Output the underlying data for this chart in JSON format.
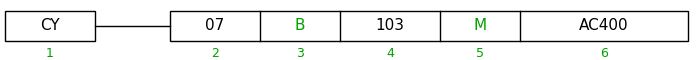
{
  "cy_label": "CY",
  "cy_number": "1",
  "segments": [
    "07",
    "B",
    "103",
    "M",
    "AC400"
  ],
  "numbers": [
    "2",
    "3",
    "4",
    "5",
    "6"
  ],
  "green_segments": [
    1,
    3
  ],
  "text_color_normal": "#000000",
  "text_color_green": "#00a000",
  "number_color": "#00a000",
  "box_edge_color": "#000000",
  "background_color": "#ffffff",
  "fig_width": 6.96,
  "fig_height": 0.6,
  "dpi": 100
}
